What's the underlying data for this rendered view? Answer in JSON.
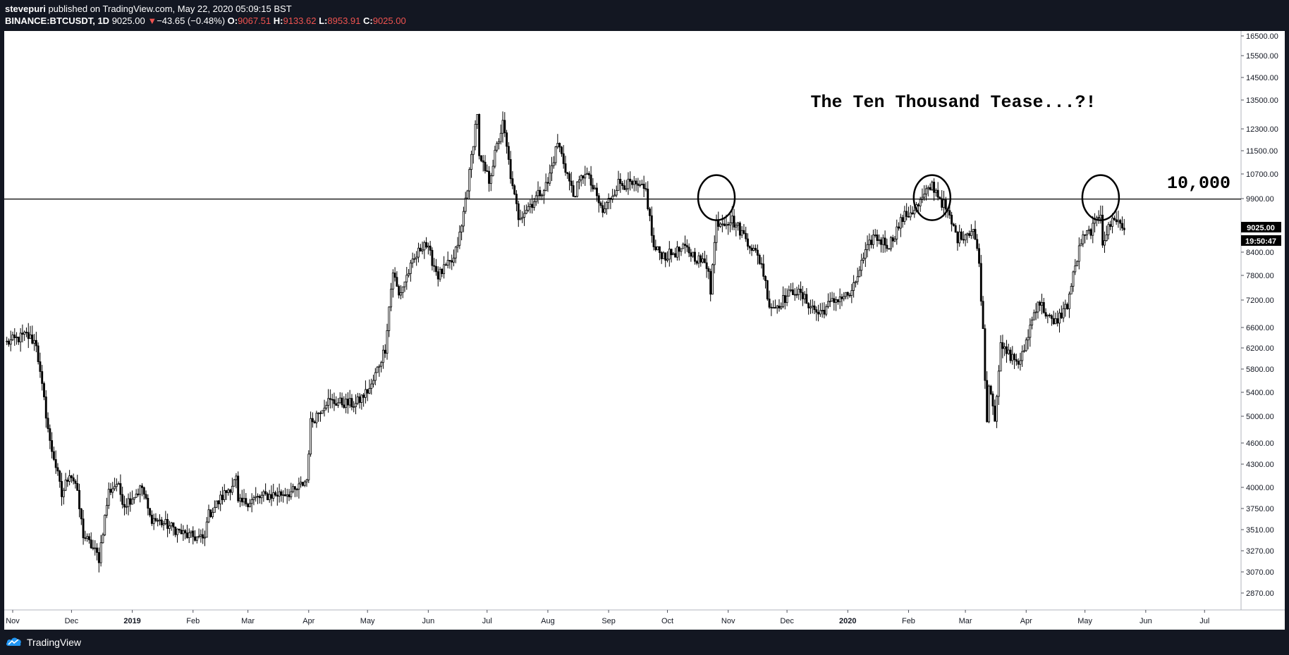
{
  "header": {
    "author": "stevepuri",
    "published": "published on TradingView.com, May 22, 2020 05:09:15 BST",
    "symbol": "BINANCE:BTCUSDT, 1D",
    "last": "9025.00",
    "change_arrow": "▼",
    "change": "−43.65 (−0.48%)",
    "o_label": "O:",
    "o_value": "9067.51",
    "h_label": "H:",
    "h_value": "9133.62",
    "l_label": "L:",
    "l_value": "8953.91",
    "c_label": "C:",
    "c_value": "9025.00"
  },
  "footer": {
    "logo_text": "TradingView"
  },
  "colors": {
    "background": "#131722",
    "chart_bg": "#ffffff",
    "down": "#ef5350",
    "price_tag_bg": "#000000"
  },
  "chart_data": {
    "type": "candlestick",
    "annotation_title": "The Ten Thousand Tease...?!",
    "level_label": "10,000",
    "level_value": 10000,
    "price_tag": "9025.00",
    "countdown_tag": "19:50:47",
    "y_ticks": [
      2870,
      3070,
      3270,
      3510,
      3750,
      4000,
      4300,
      4600,
      5000,
      5400,
      5800,
      6200,
      6600,
      7200,
      7800,
      8400,
      9900,
      10700,
      11500,
      12300,
      13500,
      14500,
      15500,
      16500
    ],
    "y_tick_labels": [
      "2870.00",
      "3070.00",
      "3270.00",
      "3510.00",
      "3750.00",
      "4000.00",
      "4300.00",
      "4600.00",
      "5000.00",
      "5400.00",
      "5800.00",
      "6200.00",
      "6600.00",
      "7200.00",
      "7800.00",
      "8400.00",
      "9900.00",
      "10700.00",
      "11500.00",
      "12300.00",
      "13500.00",
      "14500.00",
      "15500.00",
      "16500.00"
    ],
    "x_ticks": [
      {
        "label": "Nov",
        "date": "2018-11-01",
        "bold": false
      },
      {
        "label": "Dec",
        "date": "2018-12-01",
        "bold": false
      },
      {
        "label": "2019",
        "date": "2019-01-01",
        "bold": true
      },
      {
        "label": "Feb",
        "date": "2019-02-01",
        "bold": false
      },
      {
        "label": "Mar",
        "date": "2019-03-01",
        "bold": false
      },
      {
        "label": "Apr",
        "date": "2019-04-01",
        "bold": false
      },
      {
        "label": "May",
        "date": "2019-05-01",
        "bold": false
      },
      {
        "label": "Jun",
        "date": "2019-06-01",
        "bold": false
      },
      {
        "label": "Jul",
        "date": "2019-07-01",
        "bold": false
      },
      {
        "label": "Aug",
        "date": "2019-08-01",
        "bold": false
      },
      {
        "label": "Sep",
        "date": "2019-09-01",
        "bold": false
      },
      {
        "label": "Oct",
        "date": "2019-10-01",
        "bold": false
      },
      {
        "label": "Nov",
        "date": "2019-11-01",
        "bold": false
      },
      {
        "label": "Dec",
        "date": "2019-12-01",
        "bold": false
      },
      {
        "label": "2020",
        "date": "2020-01-01",
        "bold": true
      },
      {
        "label": "Feb",
        "date": "2020-02-01",
        "bold": false
      },
      {
        "label": "Mar",
        "date": "2020-03-01",
        "bold": false
      },
      {
        "label": "Apr",
        "date": "2020-04-01",
        "bold": false
      },
      {
        "label": "May",
        "date": "2020-05-01",
        "bold": false
      },
      {
        "label": "Jun",
        "date": "2020-06-01",
        "bold": false
      },
      {
        "label": "Jul",
        "date": "2020-07-01",
        "bold": false
      }
    ],
    "circled_dates": [
      "2019-10-26",
      "2020-02-13",
      "2020-05-09"
    ],
    "price_path": [
      {
        "date": "2018-10-29",
        "close": 6300
      },
      {
        "date": "2018-11-08",
        "close": 6450
      },
      {
        "date": "2018-11-13",
        "close": 6300
      },
      {
        "date": "2018-11-15",
        "close": 5700
      },
      {
        "date": "2018-11-20",
        "close": 4600
      },
      {
        "date": "2018-11-22",
        "close": 4400
      },
      {
        "date": "2018-11-26",
        "close": 3900
      },
      {
        "date": "2018-11-30",
        "close": 4200
      },
      {
        "date": "2018-12-03",
        "close": 4050
      },
      {
        "date": "2018-12-07",
        "close": 3450
      },
      {
        "date": "2018-12-15",
        "close": 3200
      },
      {
        "date": "2018-12-20",
        "close": 3950
      },
      {
        "date": "2018-12-24",
        "close": 4050
      },
      {
        "date": "2018-12-28",
        "close": 3800
      },
      {
        "date": "2019-01-06",
        "close": 4000
      },
      {
        "date": "2019-01-10",
        "close": 3650
      },
      {
        "date": "2019-01-20",
        "close": 3550
      },
      {
        "date": "2019-01-28",
        "close": 3450
      },
      {
        "date": "2019-02-07",
        "close": 3400
      },
      {
        "date": "2019-02-08",
        "close": 3650
      },
      {
        "date": "2019-02-23",
        "close": 4100
      },
      {
        "date": "2019-02-24",
        "close": 3800
      },
      {
        "date": "2019-03-10",
        "close": 3900
      },
      {
        "date": "2019-03-25",
        "close": 3950
      },
      {
        "date": "2019-03-31",
        "close": 4100
      },
      {
        "date": "2019-04-02",
        "close": 4900
      },
      {
        "date": "2019-04-10",
        "close": 5250
      },
      {
        "date": "2019-04-25",
        "close": 5200
      },
      {
        "date": "2019-05-03",
        "close": 5500
      },
      {
        "date": "2019-05-10",
        "close": 6200
      },
      {
        "date": "2019-05-14",
        "close": 7900
      },
      {
        "date": "2019-05-17",
        "close": 7300
      },
      {
        "date": "2019-05-22",
        "close": 7900
      },
      {
        "date": "2019-05-30",
        "close": 8700
      },
      {
        "date": "2019-06-06",
        "close": 7800
      },
      {
        "date": "2019-06-14",
        "close": 8200
      },
      {
        "date": "2019-06-18",
        "close": 9100
      },
      {
        "date": "2019-06-22",
        "close": 10700
      },
      {
        "date": "2019-06-26",
        "close": 13000
      },
      {
        "date": "2019-06-27",
        "close": 11200
      },
      {
        "date": "2019-06-30",
        "close": 10800
      },
      {
        "date": "2019-07-02",
        "close": 10500
      },
      {
        "date": "2019-07-09",
        "close": 12500
      },
      {
        "date": "2019-07-14",
        "close": 10200
      },
      {
        "date": "2019-07-17",
        "close": 9400
      },
      {
        "date": "2019-07-24",
        "close": 9800
      },
      {
        "date": "2019-08-01",
        "close": 10400
      },
      {
        "date": "2019-08-06",
        "close": 11800
      },
      {
        "date": "2019-08-14",
        "close": 10000
      },
      {
        "date": "2019-08-20",
        "close": 10800
      },
      {
        "date": "2019-08-29",
        "close": 9500
      },
      {
        "date": "2019-09-06",
        "close": 10400
      },
      {
        "date": "2019-09-12",
        "close": 10350
      },
      {
        "date": "2019-09-20",
        "close": 10150
      },
      {
        "date": "2019-09-24",
        "close": 8500
      },
      {
        "date": "2019-09-30",
        "close": 8300
      },
      {
        "date": "2019-10-10",
        "close": 8500
      },
      {
        "date": "2019-10-22",
        "close": 8000
      },
      {
        "date": "2019-10-23",
        "close": 7450
      },
      {
        "date": "2019-10-25",
        "close": 8650
      },
      {
        "date": "2019-10-26",
        "close": 9250
      },
      {
        "date": "2019-11-03",
        "close": 9300
      },
      {
        "date": "2019-11-10",
        "close": 8800
      },
      {
        "date": "2019-11-18",
        "close": 8100
      },
      {
        "date": "2019-11-22",
        "close": 7100
      },
      {
        "date": "2019-11-25",
        "close": 7050
      },
      {
        "date": "2019-12-05",
        "close": 7450
      },
      {
        "date": "2019-12-17",
        "close": 6900
      },
      {
        "date": "2019-12-27",
        "close": 7250
      },
      {
        "date": "2020-01-03",
        "close": 7350
      },
      {
        "date": "2020-01-08",
        "close": 8100
      },
      {
        "date": "2020-01-14",
        "close": 8850
      },
      {
        "date": "2020-01-22",
        "close": 8600
      },
      {
        "date": "2020-01-29",
        "close": 9350
      },
      {
        "date": "2020-02-06",
        "close": 9700
      },
      {
        "date": "2020-02-13",
        "close": 10350
      },
      {
        "date": "2020-02-20",
        "close": 9600
      },
      {
        "date": "2020-02-26",
        "close": 8800
      },
      {
        "date": "2020-03-05",
        "close": 9050
      },
      {
        "date": "2020-03-08",
        "close": 8100
      },
      {
        "date": "2020-03-12",
        "close": 4900
      },
      {
        "date": "2020-03-13",
        "close": 5600
      },
      {
        "date": "2020-03-16",
        "close": 5000
      },
      {
        "date": "2020-03-19",
        "close": 6200
      },
      {
        "date": "2020-03-29",
        "close": 5900
      },
      {
        "date": "2020-04-07",
        "close": 7200
      },
      {
        "date": "2020-04-15",
        "close": 6650
      },
      {
        "date": "2020-04-22",
        "close": 7100
      },
      {
        "date": "2020-04-29",
        "close": 8700
      },
      {
        "date": "2020-05-06",
        "close": 9150
      },
      {
        "date": "2020-05-09",
        "close": 9550
      },
      {
        "date": "2020-05-10",
        "close": 8700
      },
      {
        "date": "2020-05-16",
        "close": 9400
      },
      {
        "date": "2020-05-21",
        "close": 9025
      }
    ]
  }
}
